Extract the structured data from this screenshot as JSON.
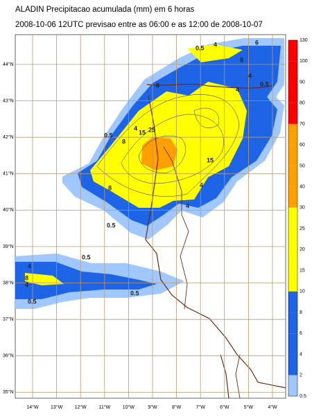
{
  "header": {
    "title": "ALADIN Precipitacao acumulada (mm) em 6 horas",
    "subtitle": "2008-10-06 12UTC  previsao entre as 06:00 e as 12:00 de 2008-10-07"
  },
  "map": {
    "lat_labels": [
      "44°N",
      "43°N",
      "42°N",
      "41°N",
      "40°N",
      "39°N",
      "38°N",
      "37°N",
      "36°N",
      "35°N"
    ],
    "lon_labels": [
      "14°W",
      "13°W",
      "12°W",
      "11°W",
      "10°W",
      "9°W",
      "8°W",
      "7°W",
      "6°W",
      "5°W",
      "4°W"
    ],
    "contour_labels": [
      "0.5",
      "4",
      "8",
      "6",
      "8",
      "4",
      "0.5",
      "4",
      "8",
      "4",
      "15",
      "25",
      "0.5",
      "15",
      "8",
      "4",
      "0.5",
      "4",
      "0.5",
      "8",
      "4",
      "0.5",
      "0.5",
      "4"
    ]
  },
  "colorbar": {
    "labels": [
      "130",
      "100",
      "90",
      "80",
      "70",
      "60",
      "50",
      "40",
      "30",
      "25",
      "20",
      "15",
      "10",
      "8",
      "6",
      "4",
      "2",
      "0.5"
    ],
    "colors": [
      "#ff0000",
      "#ff0000",
      "#ff0000",
      "#ff0000",
      "#ffa000",
      "#ffa000",
      "#ffa000",
      "#ffa000",
      "#ffff00",
      "#ffff00",
      "#ffff00",
      "#ffff00",
      "#1e64e6",
      "#1e64e6",
      "#1e64e6",
      "#1e64e6",
      "#a0c8ff"
    ]
  }
}
